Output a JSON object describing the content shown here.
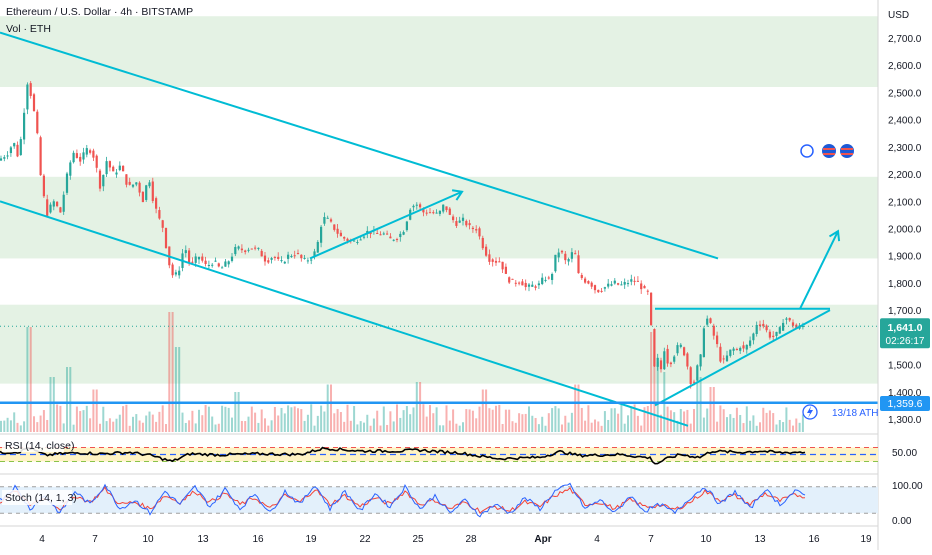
{
  "header": {
    "title": "Ethereum / U.S. Dollar · 4h · BITSTAMP",
    "volume_label": "Vol · ETH"
  },
  "price_axis": {
    "currency": "USD",
    "ticks": [
      "2,700.0",
      "2,600.0",
      "2,500.0",
      "2,400.0",
      "2,300.0",
      "2,200.0",
      "2,100.0",
      "2,000.0",
      "1,900.0",
      "1,800.0",
      "1,700.0",
      "1,600.0",
      "1,500.0",
      "1,400.0",
      "1,300.0"
    ]
  },
  "time_axis": {
    "ticks": [
      "4",
      "7",
      "10",
      "13",
      "16",
      "19",
      "22",
      "25",
      "28",
      "Apr",
      "4",
      "7",
      "10",
      "13",
      "16",
      "19"
    ]
  },
  "price_badge": {
    "value": "1,641.0",
    "countdown": "02:26:17"
  },
  "level_badge": {
    "value": "1,359.6"
  },
  "ath_label": "13/18 ATH",
  "rsi": {
    "label": "RSI (14, close)",
    "ticks": [
      "50.00"
    ],
    "ylim": [
      0,
      100
    ]
  },
  "stoch": {
    "label": "Stoch (14, 1, 3)",
    "ticks": [
      "100.00",
      "0.00"
    ],
    "ylim": [
      0,
      100
    ]
  },
  "colors": {
    "up": "#26a69a",
    "down": "#ef5350",
    "zone": "#e4f2e4",
    "trendline": "#00bcd4",
    "rsi_line": "#000000",
    "stoch_k": "#2962ff",
    "stoch_d": "#f44336",
    "price_badge": "#26a69a",
    "level_badge": "#2196f3"
  },
  "chart_data": {
    "type": "candlestick",
    "ylim": [
      1250,
      2780
    ],
    "support_level": 1359.6,
    "last_price": 1641.0,
    "zones": [
      {
        "from": 2520,
        "to": 2780
      },
      {
        "from": 1890,
        "to": 2190
      },
      {
        "from": 1430,
        "to": 1720
      }
    ],
    "rsi_reference_levels": [
      70,
      50,
      30
    ],
    "stoch_reference_levels": [
      80,
      20
    ],
    "trendlines": [
      {
        "from": [
          0,
          2720
        ],
        "to": [
          718,
          1890
        ],
        "kind": "channel-upper"
      },
      {
        "from": [
          0,
          2100
        ],
        "to": [
          688,
          1275
        ],
        "kind": "channel-lower"
      },
      {
        "from": [
          310,
          1890
        ],
        "to": [
          462,
          2135
        ],
        "kind": "arrow"
      },
      {
        "from": [
          655,
          1705
        ],
        "to": [
          830,
          1705
        ],
        "kind": "triangle-top"
      },
      {
        "from": [
          655,
          1350
        ],
        "to": [
          830,
          1700
        ],
        "kind": "triangle-bottom"
      },
      {
        "from": [
          800,
          1705
        ],
        "to": [
          838,
          1990
        ],
        "kind": "arrow"
      }
    ],
    "price_path": [
      [
        0,
        2250
      ],
      [
        10,
        2280
      ],
      [
        15,
        2320
      ],
      [
        20,
        2260
      ],
      [
        25,
        2400
      ],
      [
        28,
        2550
      ],
      [
        32,
        2500
      ],
      [
        38,
        2380
      ],
      [
        42,
        2200
      ],
      [
        48,
        2050
      ],
      [
        55,
        2100
      ],
      [
        62,
        2060
      ],
      [
        70,
        2220
      ],
      [
        75,
        2280
      ],
      [
        82,
        2250
      ],
      [
        90,
        2300
      ],
      [
        96,
        2260
      ],
      [
        102,
        2150
      ],
      [
        108,
        2250
      ],
      [
        115,
        2200
      ],
      [
        122,
        2230
      ],
      [
        130,
        2150
      ],
      [
        138,
        2170
      ],
      [
        145,
        2100
      ],
      [
        150,
        2200
      ],
      [
        155,
        2100
      ],
      [
        160,
        2040
      ],
      [
        165,
        2000
      ],
      [
        170,
        1880
      ],
      [
        175,
        1820
      ],
      [
        180,
        1840
      ],
      [
        186,
        1940
      ],
      [
        192,
        1860
      ],
      [
        200,
        1900
      ],
      [
        208,
        1860
      ],
      [
        215,
        1880
      ],
      [
        222,
        1850
      ],
      [
        230,
        1880
      ],
      [
        238,
        1930
      ],
      [
        245,
        1920
      ],
      [
        252,
        1930
      ],
      [
        260,
        1920
      ],
      [
        268,
        1880
      ],
      [
        275,
        1900
      ],
      [
        282,
        1870
      ],
      [
        290,
        1900
      ],
      [
        298,
        1910
      ],
      [
        305,
        1880
      ],
      [
        312,
        1890
      ],
      [
        318,
        1920
      ],
      [
        324,
        2040
      ],
      [
        330,
        2030
      ],
      [
        336,
        2000
      ],
      [
        342,
        1970
      ],
      [
        348,
        1960
      ],
      [
        355,
        1950
      ],
      [
        362,
        1970
      ],
      [
        370,
        1990
      ],
      [
        378,
        1980
      ],
      [
        385,
        1980
      ],
      [
        392,
        1960
      ],
      [
        400,
        1970
      ],
      [
        406,
        2000
      ],
      [
        412,
        2080
      ],
      [
        418,
        2090
      ],
      [
        425,
        2060
      ],
      [
        432,
        2060
      ],
      [
        440,
        2050
      ],
      [
        446,
        2090
      ],
      [
        452,
        2040
      ],
      [
        458,
        2020
      ],
      [
        465,
        2030
      ],
      [
        472,
        2000
      ],
      [
        478,
        2000
      ],
      [
        484,
        1940
      ],
      [
        490,
        1890
      ],
      [
        496,
        1880
      ],
      [
        502,
        1880
      ],
      [
        508,
        1820
      ],
      [
        515,
        1800
      ],
      [
        522,
        1810
      ],
      [
        528,
        1780
      ],
      [
        534,
        1790
      ],
      [
        540,
        1790
      ],
      [
        546,
        1820
      ],
      [
        552,
        1810
      ],
      [
        558,
        1910
      ],
      [
        562,
        1920
      ],
      [
        568,
        1870
      ],
      [
        572,
        1900
      ],
      [
        576,
        1920
      ],
      [
        580,
        1830
      ],
      [
        586,
        1810
      ],
      [
        592,
        1800
      ],
      [
        598,
        1770
      ],
      [
        604,
        1780
      ],
      [
        610,
        1790
      ],
      [
        616,
        1800
      ],
      [
        622,
        1790
      ],
      [
        628,
        1800
      ],
      [
        634,
        1810
      ],
      [
        640,
        1800
      ],
      [
        646,
        1770
      ],
      [
        650,
        1760
      ],
      [
        652,
        1690
      ],
      [
        655,
        1460
      ],
      [
        658,
        1540
      ],
      [
        662,
        1470
      ],
      [
        666,
        1560
      ],
      [
        670,
        1500
      ],
      [
        674,
        1520
      ],
      [
        678,
        1560
      ],
      [
        682,
        1570
      ],
      [
        686,
        1540
      ],
      [
        690,
        1480
      ],
      [
        694,
        1410
      ],
      [
        698,
        1480
      ],
      [
        702,
        1520
      ],
      [
        706,
        1660
      ],
      [
        710,
        1670
      ],
      [
        714,
        1620
      ],
      [
        718,
        1580
      ],
      [
        722,
        1520
      ],
      [
        726,
        1510
      ],
      [
        730,
        1540
      ],
      [
        734,
        1560
      ],
      [
        738,
        1550
      ],
      [
        742,
        1570
      ],
      [
        746,
        1550
      ],
      [
        750,
        1580
      ],
      [
        754,
        1600
      ],
      [
        758,
        1650
      ],
      [
        762,
        1650
      ],
      [
        766,
        1640
      ],
      [
        770,
        1610
      ],
      [
        774,
        1600
      ],
      [
        778,
        1610
      ],
      [
        782,
        1630
      ],
      [
        786,
        1680
      ],
      [
        790,
        1660
      ],
      [
        794,
        1650
      ],
      [
        798,
        1630
      ],
      [
        802,
        1640
      ],
      [
        806,
        1641
      ]
    ],
    "volume_peaks": [
      [
        28,
        210
      ],
      [
        52,
        110
      ],
      [
        68,
        130
      ],
      [
        95,
        85
      ],
      [
        172,
        240
      ],
      [
        178,
        170
      ],
      [
        238,
        80
      ],
      [
        330,
        95
      ],
      [
        418,
        100
      ],
      [
        484,
        85
      ],
      [
        578,
        95
      ],
      [
        652,
        200
      ],
      [
        656,
        140
      ],
      [
        664,
        120
      ],
      [
        700,
        110
      ],
      [
        712,
        90
      ]
    ],
    "rsi_path": [
      [
        0,
        55
      ],
      [
        20,
        58
      ],
      [
        28,
        70
      ],
      [
        45,
        48
      ],
      [
        60,
        52
      ],
      [
        80,
        55
      ],
      [
        100,
        52
      ],
      [
        130,
        56
      ],
      [
        150,
        48
      ],
      [
        172,
        30
      ],
      [
        190,
        52
      ],
      [
        220,
        49
      ],
      [
        260,
        52
      ],
      [
        300,
        50
      ],
      [
        324,
        68
      ],
      [
        360,
        60
      ],
      [
        400,
        60
      ],
      [
        418,
        63
      ],
      [
        440,
        58
      ],
      [
        460,
        55
      ],
      [
        480,
        45
      ],
      [
        500,
        38
      ],
      [
        520,
        40
      ],
      [
        540,
        42
      ],
      [
        560,
        58
      ],
      [
        580,
        47
      ],
      [
        620,
        50
      ],
      [
        650,
        40
      ],
      [
        656,
        22
      ],
      [
        664,
        35
      ],
      [
        680,
        50
      ],
      [
        700,
        42
      ],
      [
        712,
        60
      ],
      [
        740,
        56
      ],
      [
        760,
        60
      ],
      [
        780,
        55
      ],
      [
        800,
        57
      ],
      [
        806,
        56
      ]
    ],
    "stoch_k": [
      [
        0,
        50
      ],
      [
        15,
        80
      ],
      [
        30,
        30
      ],
      [
        45,
        60
      ],
      [
        60,
        20
      ],
      [
        75,
        70
      ],
      [
        90,
        40
      ],
      [
        105,
        85
      ],
      [
        120,
        30
      ],
      [
        135,
        50
      ],
      [
        150,
        20
      ],
      [
        165,
        70
      ],
      [
        180,
        40
      ],
      [
        195,
        80
      ],
      [
        210,
        35
      ],
      [
        225,
        75
      ],
      [
        240,
        30
      ],
      [
        255,
        65
      ],
      [
        270,
        20
      ],
      [
        285,
        70
      ],
      [
        300,
        40
      ],
      [
        315,
        85
      ],
      [
        330,
        30
      ],
      [
        345,
        70
      ],
      [
        360,
        25
      ],
      [
        375,
        65
      ],
      [
        390,
        35
      ],
      [
        405,
        80
      ],
      [
        420,
        30
      ],
      [
        435,
        60
      ],
      [
        450,
        20
      ],
      [
        465,
        50
      ],
      [
        480,
        15
      ],
      [
        495,
        40
      ],
      [
        510,
        20
      ],
      [
        525,
        55
      ],
      [
        540,
        30
      ],
      [
        555,
        70
      ],
      [
        570,
        85
      ],
      [
        585,
        30
      ],
      [
        600,
        50
      ],
      [
        615,
        20
      ],
      [
        630,
        60
      ],
      [
        645,
        25
      ],
      [
        660,
        40
      ],
      [
        675,
        20
      ],
      [
        690,
        55
      ],
      [
        705,
        80
      ],
      [
        720,
        40
      ],
      [
        735,
        70
      ],
      [
        750,
        30
      ],
      [
        765,
        75
      ],
      [
        780,
        40
      ],
      [
        795,
        70
      ],
      [
        806,
        60
      ]
    ],
    "stoch_d": [
      [
        0,
        45
      ],
      [
        15,
        70
      ],
      [
        30,
        40
      ],
      [
        45,
        55
      ],
      [
        60,
        30
      ],
      [
        75,
        60
      ],
      [
        90,
        45
      ],
      [
        105,
        75
      ],
      [
        120,
        40
      ],
      [
        135,
        45
      ],
      [
        150,
        30
      ],
      [
        165,
        60
      ],
      [
        180,
        45
      ],
      [
        195,
        70
      ],
      [
        210,
        45
      ],
      [
        225,
        65
      ],
      [
        240,
        40
      ],
      [
        255,
        55
      ],
      [
        270,
        30
      ],
      [
        285,
        60
      ],
      [
        300,
        45
      ],
      [
        315,
        75
      ],
      [
        330,
        40
      ],
      [
        345,
        60
      ],
      [
        360,
        35
      ],
      [
        375,
        55
      ],
      [
        390,
        40
      ],
      [
        405,
        70
      ],
      [
        420,
        40
      ],
      [
        435,
        50
      ],
      [
        450,
        30
      ],
      [
        465,
        45
      ],
      [
        480,
        25
      ],
      [
        495,
        35
      ],
      [
        510,
        25
      ],
      [
        525,
        45
      ],
      [
        540,
        35
      ],
      [
        555,
        60
      ],
      [
        570,
        75
      ],
      [
        585,
        40
      ],
      [
        600,
        45
      ],
      [
        615,
        30
      ],
      [
        630,
        50
      ],
      [
        645,
        35
      ],
      [
        660,
        38
      ],
      [
        675,
        28
      ],
      [
        690,
        45
      ],
      [
        705,
        70
      ],
      [
        720,
        50
      ],
      [
        735,
        60
      ],
      [
        750,
        40
      ],
      [
        765,
        65
      ],
      [
        780,
        48
      ],
      [
        795,
        62
      ],
      [
        806,
        58
      ]
    ]
  }
}
